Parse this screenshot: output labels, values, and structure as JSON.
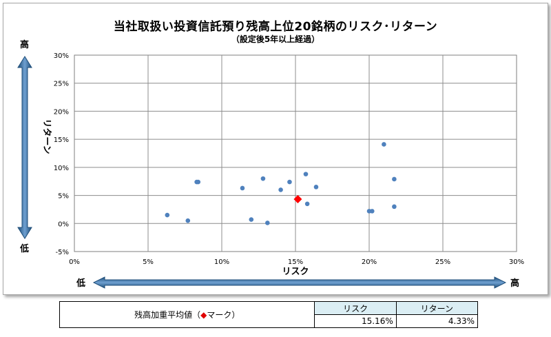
{
  "chart_data": {
    "type": "scatter",
    "title": "当社取扱い投資信託預り残高上位20銘柄のリスク･リターン",
    "subtitle": "（設定後5年以上経過）",
    "xlabel": "リスク",
    "ylabel": "リターン",
    "xlim": [
      0,
      30
    ],
    "ylim": [
      -5,
      30
    ],
    "x_ticks": [
      "0%",
      "5%",
      "10%",
      "15%",
      "20%",
      "25%",
      "30%"
    ],
    "y_ticks": [
      "30%",
      "25%",
      "20%",
      "15%",
      "10%",
      "5%",
      "0%",
      "-5%"
    ],
    "x_low": "低",
    "x_high": "高",
    "y_low": "低",
    "y_high": "高",
    "grid": true,
    "series": [
      {
        "marker": "circle",
        "color": "#4f81bd",
        "points": [
          {
            "x": 6.3,
            "y": 1.5
          },
          {
            "x": 7.7,
            "y": 0.5
          },
          {
            "x": 8.3,
            "y": 7.4
          },
          {
            "x": 8.4,
            "y": 7.4
          },
          {
            "x": 11.4,
            "y": 6.3
          },
          {
            "x": 12.0,
            "y": 0.7
          },
          {
            "x": 12.8,
            "y": 8.0
          },
          {
            "x": 13.1,
            "y": 0.1
          },
          {
            "x": 14.0,
            "y": 6.0
          },
          {
            "x": 14.6,
            "y": 7.4
          },
          {
            "x": 15.7,
            "y": 8.8
          },
          {
            "x": 15.8,
            "y": 3.5
          },
          {
            "x": 16.4,
            "y": 6.5
          },
          {
            "x": 20.0,
            "y": 2.2
          },
          {
            "x": 20.2,
            "y": 2.2
          },
          {
            "x": 21.0,
            "y": 14.1
          },
          {
            "x": 21.7,
            "y": 7.9
          },
          {
            "x": 21.7,
            "y": 3.0
          }
        ]
      },
      {
        "marker": "diamond",
        "color": "#ff0000",
        "points": [
          {
            "x": 15.16,
            "y": 4.33
          }
        ]
      }
    ]
  },
  "summary": {
    "label_prefix": "残高加重平均値（",
    "label_marker": "◆",
    "label_suffix": "マーク）",
    "risk_header": "リスク",
    "return_header": "リターン",
    "risk_value": "15.16%",
    "return_value": "4.33%"
  }
}
